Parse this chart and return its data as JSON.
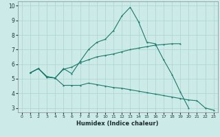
{
  "xlabel": "Humidex (Indice chaleur)",
  "bg_color": "#cceae8",
  "grid_color": "#aad4d0",
  "line_color": "#1a7a6a",
  "xlim": [
    -0.5,
    23.5
  ],
  "ylim": [
    2.7,
    10.3
  ],
  "xticks": [
    0,
    1,
    2,
    3,
    4,
    5,
    6,
    7,
    8,
    9,
    10,
    11,
    12,
    13,
    14,
    15,
    16,
    17,
    18,
    19,
    20,
    21,
    22,
    23
  ],
  "yticks": [
    3,
    4,
    5,
    6,
    7,
    8,
    9,
    10
  ],
  "line1_x": [
    1,
    2,
    3,
    4,
    5,
    6,
    7,
    8,
    9,
    10,
    11,
    12,
    13,
    14,
    15,
    16,
    17,
    18,
    19,
    20,
    21,
    22,
    23
  ],
  "line1_y": [
    5.4,
    5.7,
    5.1,
    5.05,
    5.7,
    5.35,
    6.2,
    7.0,
    7.5,
    7.7,
    8.3,
    9.3,
    9.9,
    8.9,
    7.5,
    7.4,
    6.3,
    5.3,
    4.1,
    3.0,
    null,
    null,
    null
  ],
  "line2_x": [
    1,
    2,
    3,
    4,
    5,
    6,
    7,
    8,
    9,
    10,
    11,
    12,
    13,
    14,
    15,
    16,
    17,
    18,
    19
  ],
  "line2_y": [
    5.4,
    5.7,
    5.15,
    5.05,
    5.65,
    5.8,
    6.1,
    6.3,
    6.5,
    6.6,
    6.7,
    6.85,
    7.0,
    7.1,
    7.2,
    7.3,
    7.35,
    7.4,
    7.4
  ],
  "line3_x": [
    1,
    2,
    3,
    4,
    5,
    6,
    7,
    8,
    9,
    10,
    11,
    12,
    13,
    14,
    15,
    16,
    17,
    18,
    19,
    20,
    21,
    22,
    23
  ],
  "line3_y": [
    5.4,
    5.7,
    5.15,
    5.05,
    4.55,
    4.55,
    4.55,
    4.7,
    4.6,
    4.5,
    4.4,
    4.35,
    4.25,
    4.15,
    4.05,
    3.95,
    3.85,
    3.75,
    3.65,
    3.55,
    3.5,
    3.0,
    2.85
  ]
}
